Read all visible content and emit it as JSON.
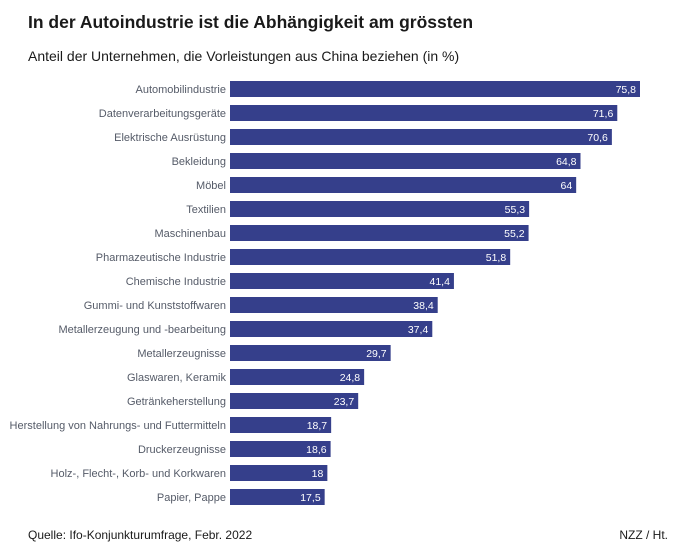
{
  "chart_data": {
    "type": "bar",
    "orientation": "horizontal",
    "title": "In der Autoindustrie ist die Abhängigkeit am grössten",
    "subtitle": "Anteil der Unternehmen, die Vorleistungen aus China beziehen (in %)",
    "categories": [
      "Automobilindustrie",
      "Datenverarbeitungsgeräte",
      "Elektrische Ausrüstung",
      "Bekleidung",
      "Möbel",
      "Textilien",
      "Maschinenbau",
      "Pharmazeutische Industrie",
      "Chemische Industrie",
      "Gummi- und Kunststoffwaren",
      "Metallerzeugung und -bearbeitung",
      "Metallerzeugnisse",
      "Glaswaren, Keramik",
      "Getränkeherstellung",
      "Herstellung von Nahrungs- und Futtermitteln",
      "Druckerzeugnisse",
      "Holz-, Flecht-, Korb- und Korkwaren",
      "Papier, Pappe"
    ],
    "values": [
      75.8,
      71.6,
      70.6,
      64.8,
      64,
      55.3,
      55.2,
      51.8,
      41.4,
      38.4,
      37.4,
      29.7,
      24.8,
      23.7,
      18.7,
      18.6,
      18,
      17.5
    ],
    "value_labels": [
      "75,8",
      "71,6",
      "70,6",
      "64,8",
      "64",
      "55,3",
      "55,2",
      "51,8",
      "41,4",
      "38,4",
      "37,4",
      "29,7",
      "24,8",
      "23,7",
      "18,7",
      "18,6",
      "18",
      "17,5"
    ],
    "xlim": [
      0,
      75.8
    ],
    "bar_color": "#353f8b"
  },
  "footer": {
    "source": "Quelle: Ifo-Konjunkturumfrage, Febr. 2022",
    "credit": "NZZ / Ht."
  }
}
